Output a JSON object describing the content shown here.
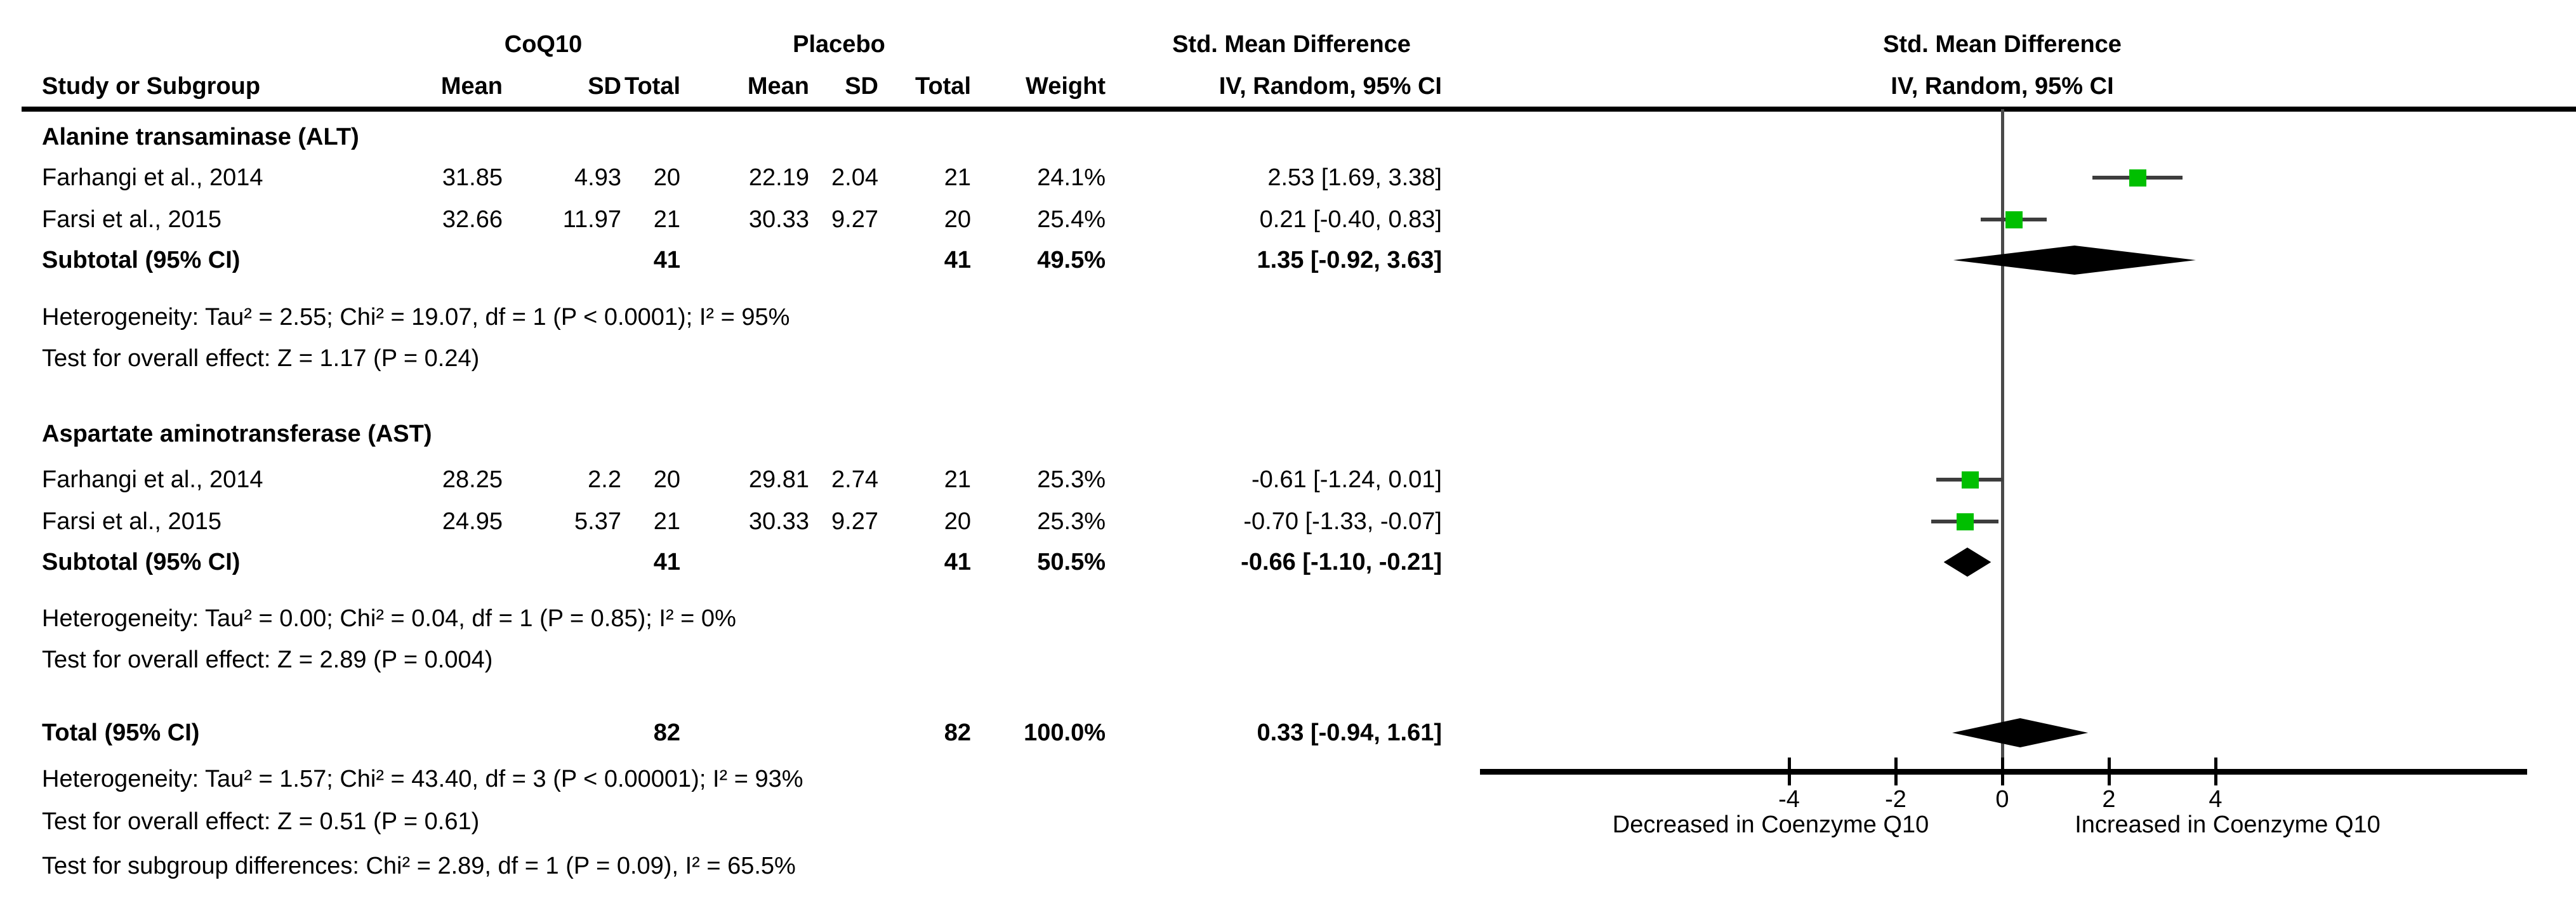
{
  "table": {
    "group_headers": {
      "coq10": "CoQ10",
      "placebo": "Placebo",
      "smd": "Std. Mean Difference"
    },
    "columns": [
      "Study or Subgroup",
      "Mean",
      "SD",
      "Total",
      "Mean",
      "SD",
      "Total",
      "Weight",
      "IV, Random, 95% CI"
    ],
    "plot_header": {
      "line1": "Std. Mean Difference",
      "line2": "IV, Random, 95% CI"
    }
  },
  "chart_data": {
    "type": "forest",
    "effect_measure": "Std. Mean Difference",
    "method": "IV, Random, 95% CI",
    "axis": {
      "ticks": [
        -4,
        -2,
        0,
        2,
        4
      ],
      "xlim": [
        -9.8,
        9.8
      ],
      "left_label": "Decreased in Coenzyme Q10",
      "right_label": "Increased in Coenzyme Q10"
    },
    "groups": [
      {
        "name": "Alanine transaminase (ALT)",
        "studies": [
          {
            "label": "Farhangi et al., 2014",
            "mean1": "31.85",
            "sd1": "4.93",
            "total1": "20",
            "mean2": "22.19",
            "sd2": "2.04",
            "total2": "21",
            "weight": "24.1%",
            "ci_text": "2.53 [1.69, 3.38]",
            "smd": 2.53,
            "lo": 1.69,
            "hi": 3.38
          },
          {
            "label": "Farsi et al., 2015",
            "mean1": "32.66",
            "sd1": "11.97",
            "total1": "21",
            "mean2": "30.33",
            "sd2": "9.27",
            "total2": "20",
            "weight": "25.4%",
            "ci_text": "0.21 [-0.40, 0.83]",
            "smd": 0.21,
            "lo": -0.4,
            "hi": 0.83
          }
        ],
        "subtotal": {
          "label": "Subtotal (95% CI)",
          "total1": "41",
          "total2": "41",
          "weight": "49.5%",
          "ci_text": "1.35 [-0.92, 3.63]",
          "smd": 1.35,
          "lo": -0.92,
          "hi": 3.63
        },
        "heterogeneity": "Heterogeneity: Tau² = 2.55; Chi² = 19.07, df = 1 (P < 0.0001); I² = 95%",
        "overall_effect": "Test for overall effect: Z = 1.17 (P = 0.24)"
      },
      {
        "name": "Aspartate aminotransferase (AST)",
        "studies": [
          {
            "label": "Farhangi et al., 2014",
            "mean1": "28.25",
            "sd1": "2.2",
            "total1": "20",
            "mean2": "29.81",
            "sd2": "2.74",
            "total2": "21",
            "weight": "25.3%",
            "ci_text": "-0.61 [-1.24, 0.01]",
            "smd": -0.61,
            "lo": -1.24,
            "hi": 0.01
          },
          {
            "label": "Farsi et al., 2015",
            "mean1": "24.95",
            "sd1": "5.37",
            "total1": "21",
            "mean2": "30.33",
            "sd2": "9.27",
            "total2": "20",
            "weight": "25.3%",
            "ci_text": "-0.70 [-1.33, -0.07]",
            "smd": -0.7,
            "lo": -1.33,
            "hi": -0.07
          }
        ],
        "subtotal": {
          "label": "Subtotal (95% CI)",
          "total1": "41",
          "total2": "41",
          "weight": "50.5%",
          "ci_text": "-0.66 [-1.10, -0.21]",
          "smd": -0.66,
          "lo": -1.1,
          "hi": -0.21
        },
        "heterogeneity": "Heterogeneity: Tau² = 0.00; Chi² = 0.04, df = 1 (P = 0.85); I² = 0%",
        "overall_effect": "Test for overall effect: Z = 2.89 (P = 0.004)"
      }
    ],
    "total": {
      "label": "Total (95% CI)",
      "total1": "82",
      "total2": "82",
      "weight": "100.0%",
      "ci_text": "0.33 [-0.94, 1.61]",
      "smd": 0.33,
      "lo": -0.94,
      "hi": 1.61
    },
    "total_heterogeneity": "Heterogeneity: Tau² = 1.57; Chi² = 43.40, df = 3 (P < 0.00001); I² = 93%",
    "total_overall_effect": "Test for overall effect: Z = 0.51 (P = 0.61)",
    "subgroup_test": "Test for subgroup differences: Chi² = 2.89, df = 1 (P = 0.09), I² = 65.5%",
    "colors": {
      "marker": "#00bf00",
      "ci_line": "#3d3d3d",
      "diamond": "#000000",
      "zero_line": "#4a4a4a",
      "axis": "#000000"
    }
  }
}
